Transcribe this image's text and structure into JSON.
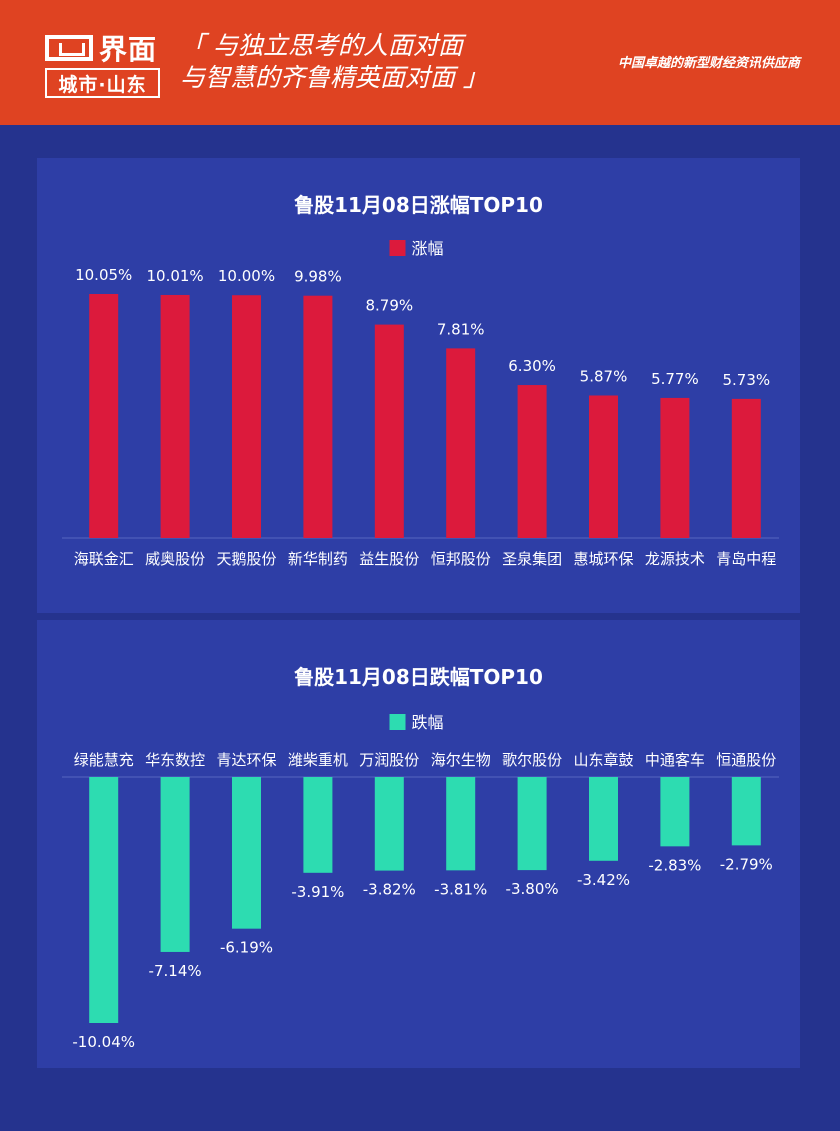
{
  "header": {
    "logo_text": "界面",
    "logo_sub": "城市·山东",
    "slogan_line1": "「 与独立思考的人面对面",
    "slogan_line2": "与智慧的齐鲁精英面对面 」",
    "tagline": "中国卓越的新型财经资讯供应商"
  },
  "colors": {
    "header_bg": "#df4322",
    "page_bg": "#25338e",
    "panel_bg": "#2e3ea6",
    "gain_bar": "#dc1a3c",
    "loss_bar": "#2ddcb1"
  },
  "chart_data": [
    {
      "type": "bar",
      "title": "鲁股11月08日涨幅TOP10",
      "legend": "涨幅",
      "legend_position": "top-center",
      "categories": [
        "海联金汇",
        "威奥股份",
        "天鹅股份",
        "新华制药",
        "益生股份",
        "恒邦股份",
        "圣泉集团",
        "惠城环保",
        "龙源技术",
        "青岛中程"
      ],
      "values": [
        10.05,
        10.01,
        10.0,
        9.98,
        8.79,
        7.81,
        6.3,
        5.87,
        5.77,
        5.73
      ],
      "labels": [
        "10.05%",
        "10.01%",
        "10.00%",
        "9.98%",
        "8.79%",
        "7.81%",
        "6.30%",
        "5.87%",
        "5.77%",
        "5.73%"
      ],
      "unit": "%",
      "ylim": [
        0,
        10.05
      ],
      "grid": false
    },
    {
      "type": "bar",
      "title": "鲁股11月08日跌幅TOP10",
      "legend": "跌幅",
      "legend_position": "top-center",
      "categories": [
        "绿能慧充",
        "华东数控",
        "青达环保",
        "潍柴重机",
        "万润股份",
        "海尔生物",
        "歌尔股份",
        "山东章鼓",
        "中通客车",
        "恒通股份"
      ],
      "values": [
        -10.04,
        -7.14,
        -6.19,
        -3.91,
        -3.82,
        -3.81,
        -3.8,
        -3.42,
        -2.83,
        -2.79
      ],
      "labels": [
        "-10.04%",
        "-7.14%",
        "-6.19%",
        "-3.91%",
        "-3.82%",
        "-3.81%",
        "-3.80%",
        "-3.42%",
        "-2.83%",
        "-2.79%"
      ],
      "unit": "%",
      "ylim": [
        -10.04,
        0
      ],
      "grid": false
    }
  ]
}
